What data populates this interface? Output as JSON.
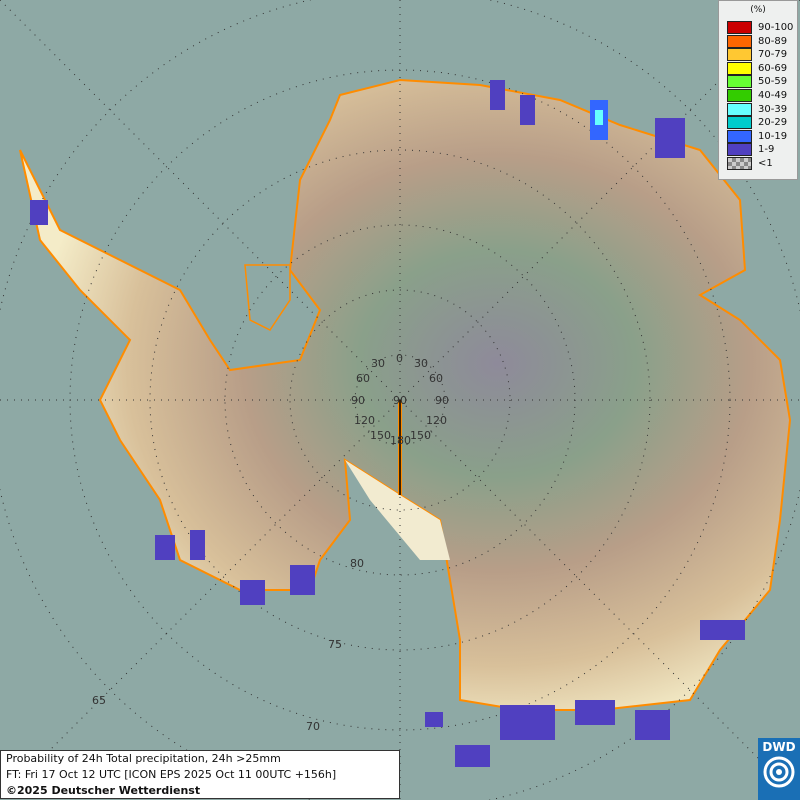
{
  "map": {
    "meridian_labels": [
      "0",
      "30",
      "30",
      "60",
      "60",
      "90",
      "90",
      "90",
      "120",
      "120",
      "150",
      "150",
      "180"
    ],
    "latitude_labels": [
      "80",
      "75",
      "70",
      "65"
    ],
    "colors": {
      "ocean": "#8ea9a5",
      "coast": "#ff8c00",
      "low_prob": "#5040c0"
    }
  },
  "legend": {
    "unit": "(%)",
    "items": [
      {
        "label": "90-100",
        "color": "#cc0000"
      },
      {
        "label": "80-89",
        "color": "#ff6600"
      },
      {
        "label": "70-79",
        "color": "#ffc832"
      },
      {
        "label": "60-69",
        "color": "#ffff00"
      },
      {
        "label": "50-59",
        "color": "#66ff33"
      },
      {
        "label": "40-49",
        "color": "#33cc00"
      },
      {
        "label": "30-39",
        "color": "#66ffff"
      },
      {
        "label": "20-29",
        "color": "#00cccc"
      },
      {
        "label": "10-19",
        "color": "#3366ff"
      },
      {
        "label": "1-9",
        "color": "#5040c0"
      },
      {
        "label": "<1",
        "color": "#aaaaaa"
      }
    ]
  },
  "info": {
    "title": "Probability of 24h Total precipitation, 24h >25mm",
    "forecast": "FT: Fri 17 Oct 12 UTC [ICON EPS 2025 Oct 11 00UTC +156h]",
    "copyright": "©2025 Deutscher Wetterdienst"
  },
  "logo": {
    "text": "DWD"
  }
}
